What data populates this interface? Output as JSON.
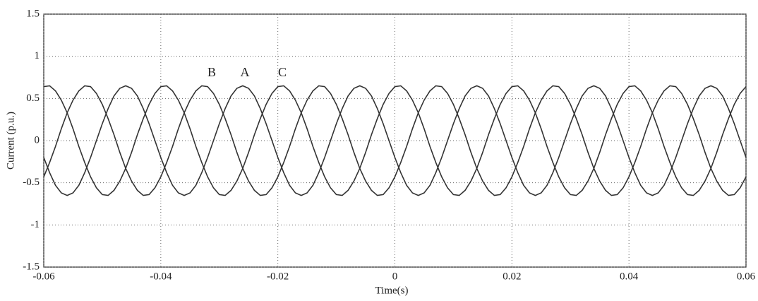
{
  "chart_data": {
    "type": "line",
    "xlabel": "Time(s)",
    "ylabel": "Current (p.u.)",
    "xlim": [
      -0.06,
      0.06
    ],
    "ylim": [
      -1.5,
      1.5
    ],
    "xticks": [
      -0.06,
      -0.04,
      -0.02,
      0,
      0.02,
      0.04,
      0.06
    ],
    "yticks": [
      -1.5,
      -1,
      -0.5,
      0,
      0.5,
      1,
      1.5
    ],
    "grid": true,
    "x": [
      -0.06,
      -0.059,
      -0.058,
      -0.057,
      -0.056,
      -0.055,
      -0.054,
      -0.053,
      -0.052,
      -0.051,
      -0.05,
      -0.049,
      -0.048,
      -0.047,
      -0.046,
      -0.045,
      -0.044,
      -0.043,
      -0.042,
      -0.041,
      -0.04,
      -0.039,
      -0.038,
      -0.037,
      -0.036,
      -0.035,
      -0.034,
      -0.033,
      -0.032,
      -0.031,
      -0.03,
      -0.029,
      -0.028,
      -0.027,
      -0.026,
      -0.025,
      -0.024,
      -0.023,
      -0.022,
      -0.021,
      -0.02,
      -0.019,
      -0.018,
      -0.017,
      -0.016,
      -0.015,
      -0.014,
      -0.013,
      -0.012,
      -0.011,
      -0.01,
      -0.009,
      -0.008,
      -0.007,
      -0.006,
      -0.005,
      -0.004,
      -0.003,
      -0.002,
      -0.001,
      0,
      0.001,
      0.002,
      0.003,
      0.004,
      0.005,
      0.006,
      0.007,
      0.008,
      0.009,
      0.01,
      0.011,
      0.012,
      0.013,
      0.014,
      0.015,
      0.016,
      0.017,
      0.018,
      0.019,
      0.02,
      0.021,
      0.022,
      0.023,
      0.024,
      0.025,
      0.026,
      0.027,
      0.028,
      0.029,
      0.03,
      0.031,
      0.032,
      0.033,
      0.034,
      0.035,
      0.036,
      0.037,
      0.038,
      0.039,
      0.04,
      0.041,
      0.042,
      0.043,
      0.044,
      0.045,
      0.046,
      0.047,
      0.048,
      0.049,
      0.05,
      0.051,
      0.052,
      0.053,
      0.054,
      0.055,
      0.056,
      0.057,
      0.058,
      0.059,
      0.06
    ],
    "series": [
      {
        "name": "A",
        "color": "#333333",
        "values": [
          -0.2,
          -0.38,
          -0.53,
          -0.62,
          -0.65,
          -0.62,
          -0.53,
          -0.38,
          -0.2,
          0,
          0.2,
          0.38,
          0.53,
          0.62,
          0.65,
          0.62,
          0.53,
          0.38,
          0.2,
          0,
          -0.2,
          -0.38,
          -0.53,
          -0.62,
          -0.65,
          -0.62,
          -0.53,
          -0.38,
          -0.2,
          0,
          0.2,
          0.38,
          0.53,
          0.62,
          0.65,
          0.62,
          0.53,
          0.38,
          0.2,
          0,
          -0.2,
          -0.38,
          -0.53,
          -0.62,
          -0.65,
          -0.62,
          -0.53,
          -0.38,
          -0.2,
          0,
          0.2,
          0.38,
          0.53,
          0.62,
          0.65,
          0.62,
          0.53,
          0.38,
          0.2,
          0,
          -0.2,
          -0.38,
          -0.53,
          -0.62,
          -0.65,
          -0.62,
          -0.53,
          -0.38,
          -0.2,
          0,
          0.2,
          0.38,
          0.53,
          0.62,
          0.65,
          0.62,
          0.53,
          0.38,
          0.2,
          0,
          -0.2,
          -0.38,
          -0.53,
          -0.62,
          -0.65,
          -0.62,
          -0.53,
          -0.38,
          -0.2,
          0,
          0.2,
          0.38,
          0.53,
          0.62,
          0.65,
          0.62,
          0.53,
          0.38,
          0.2,
          0,
          -0.2,
          -0.38,
          -0.53,
          -0.62,
          -0.65,
          -0.62,
          -0.53,
          -0.38,
          -0.2,
          0,
          0.2,
          0.38,
          0.53,
          0.62,
          0.65,
          0.62,
          0.53,
          0.38,
          0.2,
          0,
          -0.2
        ]
      },
      {
        "name": "B",
        "color": "#333333",
        "values": [
          -0.43,
          -0.26,
          -0.07,
          0.14,
          0.33,
          0.48,
          0.59,
          0.65,
          0.64,
          0.56,
          0.43,
          0.26,
          0.07,
          -0.14,
          -0.33,
          -0.48,
          -0.59,
          -0.65,
          -0.64,
          -0.56,
          -0.43,
          -0.26,
          -0.07,
          0.14,
          0.33,
          0.48,
          0.59,
          0.65,
          0.64,
          0.56,
          0.43,
          0.26,
          0.07,
          -0.14,
          -0.33,
          -0.48,
          -0.59,
          -0.65,
          -0.64,
          -0.56,
          -0.43,
          -0.26,
          -0.07,
          0.14,
          0.33,
          0.48,
          0.59,
          0.65,
          0.64,
          0.56,
          0.43,
          0.26,
          0.07,
          -0.14,
          -0.33,
          -0.48,
          -0.59,
          -0.65,
          -0.64,
          -0.56,
          -0.43,
          -0.26,
          -0.07,
          0.14,
          0.33,
          0.48,
          0.59,
          0.65,
          0.64,
          0.56,
          0.43,
          0.26,
          0.07,
          -0.14,
          -0.33,
          -0.48,
          -0.59,
          -0.65,
          -0.64,
          -0.56,
          -0.43,
          -0.26,
          -0.07,
          0.14,
          0.33,
          0.48,
          0.59,
          0.65,
          0.64,
          0.56,
          0.43,
          0.26,
          0.07,
          -0.14,
          -0.33,
          -0.48,
          -0.59,
          -0.65,
          -0.64,
          -0.56,
          -0.43,
          -0.26,
          -0.07,
          0.14,
          0.33,
          0.48,
          0.59,
          0.65,
          0.64,
          0.56,
          0.43,
          0.26,
          0.07,
          -0.14,
          -0.33,
          -0.48,
          -0.59,
          -0.65,
          -0.64,
          -0.56,
          -0.43
        ]
      },
      {
        "name": "C",
        "color": "#333333",
        "values": [
          0.64,
          0.65,
          0.59,
          0.48,
          0.33,
          0.14,
          -0.07,
          -0.26,
          -0.43,
          -0.56,
          -0.64,
          -0.65,
          -0.59,
          -0.48,
          -0.33,
          -0.14,
          0.07,
          0.26,
          0.43,
          0.56,
          0.64,
          0.65,
          0.59,
          0.48,
          0.33,
          0.14,
          -0.07,
          -0.26,
          -0.43,
          -0.56,
          -0.64,
          -0.65,
          -0.59,
          -0.48,
          -0.33,
          -0.14,
          0.07,
          0.26,
          0.43,
          0.56,
          0.64,
          0.65,
          0.59,
          0.48,
          0.33,
          0.14,
          -0.07,
          -0.26,
          -0.43,
          -0.56,
          -0.64,
          -0.65,
          -0.59,
          -0.48,
          -0.33,
          -0.14,
          0.07,
          0.26,
          0.43,
          0.56,
          0.64,
          0.65,
          0.59,
          0.48,
          0.33,
          0.14,
          -0.07,
          -0.26,
          -0.43,
          -0.56,
          -0.64,
          -0.65,
          -0.59,
          -0.48,
          -0.33,
          -0.14,
          0.07,
          0.26,
          0.43,
          0.56,
          0.64,
          0.65,
          0.59,
          0.48,
          0.33,
          0.14,
          -0.07,
          -0.26,
          -0.43,
          -0.56,
          -0.64,
          -0.65,
          -0.59,
          -0.48,
          -0.33,
          -0.14,
          0.07,
          0.26,
          0.43,
          0.56,
          0.64,
          0.65,
          0.59,
          0.48,
          0.33,
          0.14,
          -0.07,
          -0.26,
          -0.43,
          -0.56,
          -0.64,
          -0.65,
          -0.59,
          -0.48,
          -0.33,
          -0.14,
          0.07,
          0.26,
          0.43,
          0.56,
          0.64
        ]
      }
    ]
  }
}
